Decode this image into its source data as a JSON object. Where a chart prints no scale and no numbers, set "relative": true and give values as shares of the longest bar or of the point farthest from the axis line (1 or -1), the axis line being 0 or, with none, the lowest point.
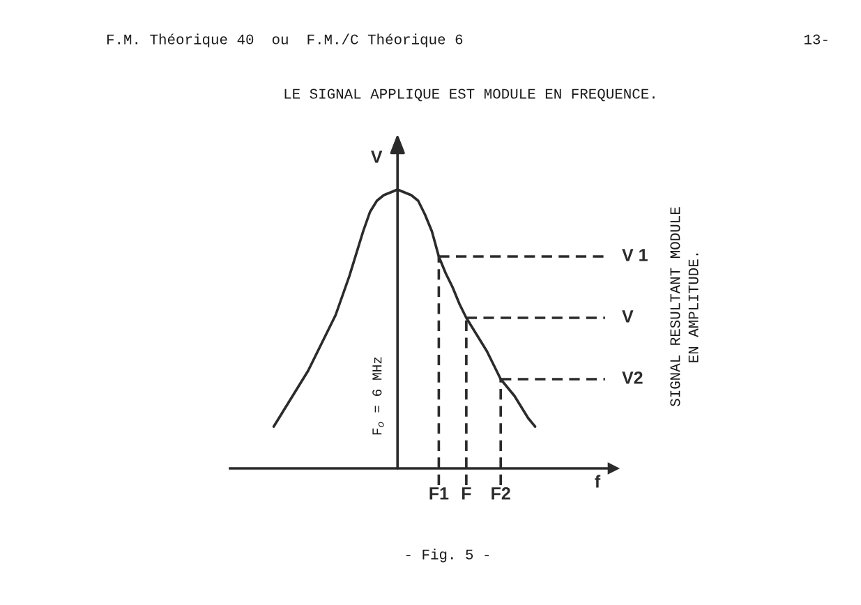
{
  "chart_data": {
    "type": "line",
    "relative": true,
    "title": "LE SIGNAL APPLIQUE EST MODULE EN FREQUENCE.",
    "xlabel": "f",
    "ylabel": "V",
    "categories": [
      null,
      null,
      null,
      null,
      null,
      null,
      null,
      null,
      null,
      null,
      null,
      null,
      null,
      null,
      null,
      null,
      null,
      null,
      null,
      null,
      null,
      null,
      null,
      null,
      "F1",
      null,
      null,
      null,
      "F",
      null,
      null,
      null,
      null,
      "F2",
      null,
      null,
      null,
      null,
      null
    ],
    "series": [
      {
        "color": "#2b2b2b",
        "values": [
          0.15,
          0.19,
          0.23,
          0.27,
          0.31,
          0.35,
          0.4,
          0.45,
          0.5,
          0.55,
          0.62,
          0.69,
          0.77,
          0.85,
          0.92,
          0.96,
          0.98,
          0.99,
          1.0,
          0.99,
          0.98,
          0.96,
          0.91,
          0.85,
          0.76,
          0.7,
          0.65,
          0.59,
          0.54,
          0.5,
          0.46,
          0.42,
          0.37,
          0.32,
          0.29,
          0.26,
          0.22,
          0.18,
          0.15
        ]
      }
    ],
    "ref_lines": [
      {
        "axis": "y",
        "value": 0.76,
        "label": "V 1",
        "line_style": "dashed",
        "color": "#2b2b2b"
      },
      {
        "axis": "y",
        "value": 0.54,
        "label": "V",
        "line_style": "dashed",
        "color": "#2b2b2b"
      },
      {
        "axis": "y",
        "value": 0.32,
        "label": "V2",
        "line_style": "dashed",
        "color": "#2b2b2b"
      },
      {
        "axis": "x",
        "value": "F1",
        "line_style": "dashed",
        "color": "#2b2b2b"
      },
      {
        "axis": "x",
        "value": "F",
        "line_style": "dashed",
        "color": "#2b2b2b"
      },
      {
        "axis": "x",
        "value": "F2",
        "line_style": "dashed",
        "color": "#2b2b2b"
      }
    ],
    "annotations": [
      "F.M. Théorique 40  ou  F.M./C Théorique 6",
      "13-",
      "F$_{o}$ = 6 MHz",
      "SIGNAL RESULTANT MODULE\nEN AMPLITUDE.",
      "- Fig. 5 -"
    ]
  }
}
